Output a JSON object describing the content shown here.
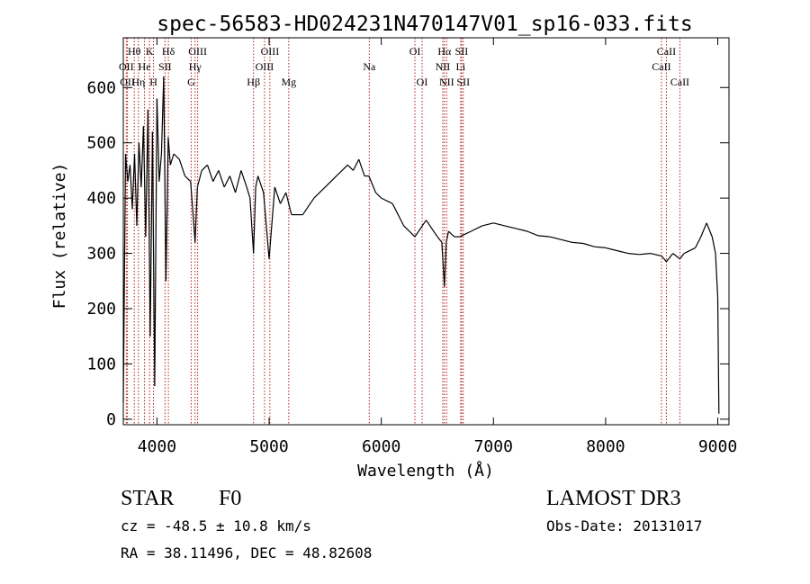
{
  "chart_data": {
    "type": "line",
    "title": "spec-56583-HD024231N470147V01_sp16-033.fits",
    "xlabel": "Wavelength (Å)",
    "ylabel": "Flux (relative)",
    "xlim": [
      3700,
      9100
    ],
    "ylim": [
      -10,
      690
    ],
    "x_ticks": [
      4000,
      5000,
      6000,
      7000,
      8000,
      9000
    ],
    "x_tick_labels": [
      "4000",
      "5000",
      "6000",
      "7000",
      "8000",
      "9000"
    ],
    "y_ticks": [
      0,
      100,
      200,
      300,
      400,
      500,
      600
    ],
    "y_tick_labels": [
      "0",
      "100",
      "200",
      "300",
      "400",
      "500",
      "600"
    ],
    "line_color": "#000000",
    "marker_color": "#b22222",
    "series": [
      {
        "name": "flux",
        "x": [
          3700,
          3720,
          3740,
          3760,
          3780,
          3800,
          3820,
          3840,
          3860,
          3880,
          3900,
          3920,
          3940,
          3960,
          3980,
          4000,
          4020,
          4040,
          4060,
          4080,
          4100,
          4120,
          4150,
          4200,
          4250,
          4300,
          4340,
          4360,
          4400,
          4450,
          4500,
          4550,
          4600,
          4650,
          4700,
          4750,
          4800,
          4830,
          4861,
          4880,
          4900,
          4950,
          5000,
          5050,
          5100,
          5150,
          5200,
          5300,
          5400,
          5500,
          5600,
          5700,
          5750,
          5800,
          5850,
          5890,
          5950,
          6000,
          6100,
          6200,
          6300,
          6400,
          6500,
          6540,
          6563,
          6580,
          6600,
          6650,
          6700,
          6800,
          6900,
          7000,
          7100,
          7200,
          7300,
          7400,
          7500,
          7600,
          7700,
          7800,
          7900,
          8000,
          8100,
          8200,
          8300,
          8400,
          8500,
          8542,
          8600,
          8662,
          8700,
          8800,
          8850,
          8900,
          8950,
          8980,
          9000,
          9010
        ],
        "y": [
          30,
          480,
          430,
          460,
          380,
          480,
          350,
          500,
          420,
          530,
          330,
          560,
          150,
          520,
          60,
          580,
          430,
          480,
          620,
          250,
          510,
          460,
          480,
          470,
          440,
          430,
          320,
          420,
          450,
          460,
          430,
          450,
          420,
          440,
          410,
          450,
          420,
          400,
          300,
          420,
          440,
          410,
          290,
          420,
          390,
          410,
          370,
          370,
          400,
          420,
          440,
          460,
          450,
          470,
          440,
          440,
          410,
          400,
          390,
          350,
          330,
          360,
          330,
          320,
          240,
          320,
          340,
          330,
          330,
          340,
          350,
          355,
          350,
          345,
          340,
          332,
          330,
          325,
          320,
          318,
          312,
          310,
          305,
          300,
          298,
          300,
          295,
          285,
          300,
          290,
          300,
          310,
          330,
          355,
          330,
          300,
          220,
          10
        ]
      }
    ],
    "lines": [
      {
        "name": "Hθ",
        "x": 3798,
        "row": 0
      },
      {
        "name": "OII",
        "x": 3727,
        "row": 1
      },
      {
        "name": "OII",
        "x": 3737,
        "row": 2
      },
      {
        "name": "Hη",
        "x": 3835,
        "row": 2
      },
      {
        "name": "He",
        "x": 3889,
        "row": 1
      },
      {
        "name": "K",
        "x": 3934,
        "row": 0
      },
      {
        "name": "H",
        "x": 3969,
        "row": 2
      },
      {
        "name": "SII",
        "x": 4072,
        "row": 1
      },
      {
        "name": "Hδ",
        "x": 4102,
        "row": 0
      },
      {
        "name": "OIII",
        "x": 4363,
        "row": 0
      },
      {
        "name": "Hγ",
        "x": 4340,
        "row": 1
      },
      {
        "name": "G",
        "x": 4305,
        "row": 2
      },
      {
        "name": "Hβ",
        "x": 4861,
        "row": 2
      },
      {
        "name": "OIII",
        "x": 4959,
        "row": 1
      },
      {
        "name": "OIII",
        "x": 5007,
        "row": 0
      },
      {
        "name": "Mg",
        "x": 5175,
        "row": 2
      },
      {
        "name": "Na",
        "x": 5893,
        "row": 1
      },
      {
        "name": "OI",
        "x": 6300,
        "row": 0
      },
      {
        "name": "OI",
        "x": 6364,
        "row": 2
      },
      {
        "name": "NII",
        "x": 6548,
        "row": 1
      },
      {
        "name": "Hα",
        "x": 6563,
        "row": 0
      },
      {
        "name": "NII",
        "x": 6583,
        "row": 2
      },
      {
        "name": "Li",
        "x": 6708,
        "row": 1
      },
      {
        "name": "SII",
        "x": 6716,
        "row": 0
      },
      {
        "name": "SII",
        "x": 6731,
        "row": 2
      },
      {
        "name": "CaII",
        "x": 8498,
        "row": 1
      },
      {
        "name": "CaII",
        "x": 8542,
        "row": 0
      },
      {
        "name": "CaII",
        "x": 8662,
        "row": 2
      }
    ]
  },
  "info": {
    "class_label": "STAR",
    "subclass": "F0",
    "survey": "LAMOST DR3",
    "redshift": "cz = -48.5 ± 10.8 km/s",
    "obs_date": "Obs-Date: 20131017",
    "coords": "RA =  38.11496, DEC =  48.82608"
  }
}
